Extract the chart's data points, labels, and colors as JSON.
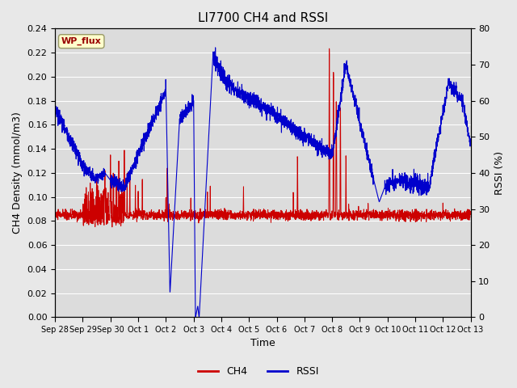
{
  "title": "LI7700 CH4 and RSSI",
  "xlabel": "Time",
  "ylabel_left": "CH4 Density (mmol/m3)",
  "ylabel_right": "RSSI (%)",
  "legend_label": "WP_flux",
  "ch4_color": "#cc0000",
  "rssi_color": "#0000cc",
  "ylim_left": [
    0.0,
    0.24
  ],
  "ylim_right": [
    0,
    80
  ],
  "background_color": "#e8e8e8",
  "plot_bg_color": "#dcdcdc",
  "title_fontsize": 11,
  "axis_fontsize": 9,
  "tick_fontsize": 8,
  "x_tick_labels": [
    "Sep 28",
    "Sep 29",
    "Sep 30",
    "Oct 1",
    "Oct 2",
    "Oct 3",
    "Oct 4",
    "Oct 5",
    "Oct 6",
    "Oct 7",
    "Oct 8",
    "Oct 9",
    "Oct 10",
    "Oct 11",
    "Oct 12",
    "Oct 13"
  ],
  "x_tick_positions": [
    0,
    1,
    2,
    3,
    4,
    5,
    6,
    7,
    8,
    9,
    10,
    11,
    12,
    13,
    14,
    15
  ],
  "right_yticks": [
    0,
    10,
    20,
    30,
    40,
    50,
    60,
    70,
    80
  ],
  "right_yticklabels": [
    "0",
    "10",
    "20",
    "30",
    "40",
    "50",
    "60",
    "70",
    "80"
  ],
  "left_yticks": [
    0.0,
    0.02,
    0.04,
    0.06,
    0.08,
    0.1,
    0.12,
    0.14,
    0.16,
    0.18,
    0.2,
    0.22,
    0.24
  ]
}
